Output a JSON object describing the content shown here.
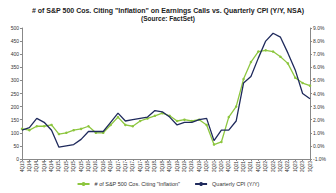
{
  "chart_data": {
    "type": "line",
    "title": "# of S&P 500 Cos. Citing \"Inflation\" on Earnings Calls vs. Quarterly CPI (Y/Y, NSA)",
    "subtitle": "(Source: FactSet)",
    "categories": [
      "4Q13",
      "1Q14",
      "2Q14",
      "3Q14",
      "4Q14",
      "1Q15",
      "2Q15",
      "3Q15",
      "4Q15",
      "1Q16",
      "2Q16",
      "3Q16",
      "4Q16",
      "1Q17",
      "2Q17",
      "3Q17",
      "4Q17",
      "1Q18",
      "2Q18",
      "3Q18",
      "4Q18",
      "1Q19",
      "2Q19",
      "3Q19",
      "4Q19",
      "1Q20",
      "2Q20",
      "3Q20",
      "4Q20",
      "1Q21",
      "2Q21",
      "3Q21",
      "4Q21",
      "1Q22",
      "2Q22",
      "3Q22",
      "4Q22",
      "1Q23",
      "2Q23",
      "3Q23"
    ],
    "series": [
      {
        "name": "# of S&P 500 Cos. Citing \"Inflation\"",
        "color": "#8dc63f",
        "marker": "circle",
        "values": [
          115,
          110,
          125,
          125,
          130,
          95,
          100,
          110,
          115,
          125,
          100,
          100,
          130,
          160,
          130,
          125,
          145,
          155,
          165,
          175,
          165,
          145,
          150,
          145,
          150,
          130,
          55,
          65,
          160,
          200,
          305,
          370,
          410,
          415,
          410,
          390,
          365,
          310,
          290,
          280
        ]
      },
      {
        "name": "Quarterly CPI (Y/Y)",
        "color": "#1f2a5c",
        "axis": "y2",
        "values": [
          1.2,
          1.4,
          2.1,
          1.8,
          1.2,
          -0.1,
          0.0,
          0.1,
          0.5,
          1.1,
          1.1,
          1.1,
          1.8,
          2.5,
          1.9,
          2.0,
          2.1,
          2.2,
          2.7,
          2.6,
          2.2,
          1.6,
          1.8,
          1.8,
          2.0,
          2.1,
          0.4,
          1.2,
          1.2,
          1.9,
          4.8,
          5.3,
          6.7,
          8.0,
          8.6,
          8.3,
          7.1,
          5.8,
          4.0,
          3.6
        ]
      }
    ],
    "ylim": [
      0,
      500
    ],
    "yticks": [
      0,
      50,
      100,
      150,
      200,
      250,
      300,
      350,
      400,
      450,
      500
    ],
    "y2lim": [
      -1,
      9
    ],
    "y2ticks": [
      {
        "value": -1,
        "label": "-1.0%"
      },
      {
        "value": 0,
        "label": "0.0%"
      },
      {
        "value": 1,
        "label": "1.0%"
      },
      {
        "value": 2,
        "label": "2.0%"
      },
      {
        "value": 3,
        "label": "3.0%"
      },
      {
        "value": 4,
        "label": "4.0%"
      },
      {
        "value": 5,
        "label": "5.0%"
      },
      {
        "value": 6,
        "label": "6.0%"
      },
      {
        "value": 7,
        "label": "7.0%"
      },
      {
        "value": 8,
        "label": "8.0%"
      },
      {
        "value": 9,
        "label": "9.0%"
      }
    ],
    "grid": false,
    "legend": "bottom"
  }
}
